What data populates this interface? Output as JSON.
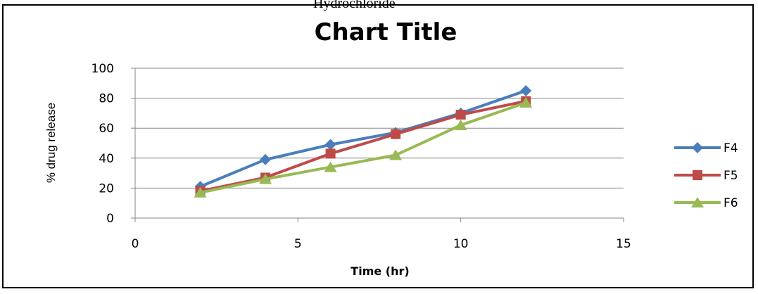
{
  "top_fragment": "Hydrochloride",
  "chart_data": {
    "type": "line",
    "title": "Chart Title",
    "xlabel": "Time (hr)",
    "ylabel": "% drug release",
    "xlim": [
      0,
      15
    ],
    "ylim": [
      0,
      100
    ],
    "xticks": [
      0,
      5,
      10,
      15
    ],
    "yticks": [
      0,
      20,
      40,
      60,
      80,
      100
    ],
    "grid": "horizontal",
    "legend_position": "right",
    "x": [
      2,
      4,
      6,
      8,
      10,
      12
    ],
    "series": [
      {
        "name": "F4",
        "color": "#4a7ebb",
        "marker": "diamond",
        "values": [
          21,
          39,
          49,
          57,
          70,
          85
        ]
      },
      {
        "name": "F5",
        "color": "#be4b48",
        "marker": "square",
        "values": [
          18,
          27,
          43,
          56,
          69,
          78
        ]
      },
      {
        "name": "F6",
        "color": "#98b954",
        "marker": "triangle",
        "values": [
          17,
          26,
          34,
          42,
          62,
          77
        ]
      }
    ]
  }
}
